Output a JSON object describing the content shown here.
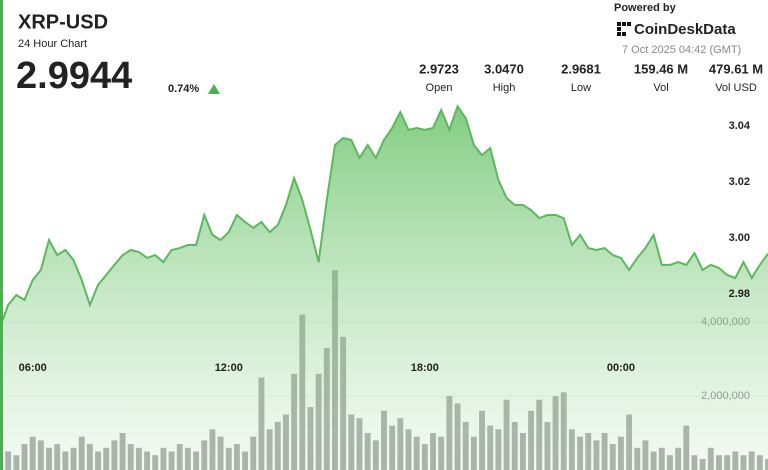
{
  "header": {
    "symbol": "XRP-USD",
    "subtitle": "24 Hour Chart",
    "price": "2.9944",
    "change": "0.74%",
    "stats": [
      {
        "value": "2.9723",
        "label": "Open"
      },
      {
        "value": "3.0470",
        "label": "High"
      },
      {
        "value": "2.9681",
        "label": "Low"
      },
      {
        "value": "159.46 M",
        "label": "Vol"
      },
      {
        "value": "479.61 M",
        "label": "Vol USD"
      }
    ],
    "powered_by": "Powered by",
    "brand": "CoinDeskData",
    "timestamp": "7 Oct 2025 04:42 (GMT)"
  },
  "chart_data": [
    {
      "type": "area",
      "color": "#5cb85c",
      "categories": [
        null,
        null,
        null,
        null,
        "06:00",
        null,
        null,
        null,
        null,
        null,
        null,
        null,
        null,
        null,
        null,
        null,
        null,
        null,
        null,
        null,
        null,
        null,
        null,
        null,
        null,
        null,
        null,
        null,
        "12:00",
        null,
        null,
        null,
        null,
        null,
        null,
        null,
        null,
        null,
        null,
        null,
        null,
        null,
        null,
        null,
        null,
        null,
        null,
        null,
        null,
        null,
        null,
        null,
        "18:00",
        null,
        null,
        null,
        null,
        null,
        null,
        null,
        null,
        null,
        null,
        null,
        null,
        null,
        null,
        null,
        null,
        null,
        null,
        null,
        null,
        null,
        null,
        null,
        "00:00",
        null,
        null,
        null,
        null,
        null,
        null,
        null,
        null,
        null,
        null,
        null,
        null,
        null,
        null,
        null,
        null,
        null,
        null
      ],
      "values": [
        2.9681,
        2.9761,
        2.9796,
        2.9779,
        2.985,
        2.9886,
        2.9993,
        2.9939,
        2.9957,
        2.9921,
        2.985,
        2.9761,
        2.9832,
        2.9868,
        2.9904,
        2.9939,
        2.9957,
        2.995,
        2.9929,
        2.9939,
        2.9914,
        2.9957,
        2.9964,
        2.9975,
        2.9975,
        3.0082,
        3.0011,
        2.9993,
        3.0021,
        3.0082,
        3.0057,
        3.0036,
        3.0057,
        3.0021,
        3.0046,
        3.0118,
        3.0214,
        3.0136,
        3.0029,
        2.9914,
        3.0136,
        3.0332,
        3.0357,
        3.035,
        3.0286,
        3.0332,
        3.0286,
        3.035,
        3.0393,
        3.045,
        3.0386,
        3.0393,
        3.0386,
        3.0393,
        3.0457,
        3.0386,
        3.047,
        3.0429,
        3.0332,
        3.0296,
        3.0321,
        3.0207,
        3.0143,
        3.0118,
        3.0118,
        3.01,
        3.0071,
        3.0082,
        3.0082,
        3.0071,
        2.9975,
        3.0011,
        2.9964,
        2.9957,
        2.9964,
        2.9939,
        2.9929,
        2.9886,
        2.9929,
        2.9964,
        3.0011,
        2.9904,
        2.9904,
        2.9914,
        2.9904,
        2.9946,
        2.9886,
        2.9904,
        2.9893,
        2.9868,
        2.9857,
        2.9914,
        2.9857,
        2.9904,
        2.9944
      ],
      "ylim": [
        2.95,
        3.07
      ],
      "yticks": [
        2.98,
        {
          "value": 3,
          "label": "3.00"
        },
        3.02,
        3.04
      ]
    },
    {
      "type": "bar",
      "color": "#5f635f",
      "values": [
        600000,
        500000,
        400000,
        700000,
        900000,
        800000,
        600000,
        700000,
        500000,
        600000,
        900000,
        700000,
        500000,
        600000,
        800000,
        1000000,
        700000,
        600000,
        500000,
        400000,
        600000,
        500000,
        700000,
        600000,
        500000,
        800000,
        1100000,
        900000,
        600000,
        700000,
        500000,
        900000,
        2500000,
        1100000,
        1300000,
        1500000,
        2600000,
        4200000,
        1700000,
        2600000,
        3300000,
        5400000,
        3600000,
        1500000,
        1400000,
        1000000,
        800000,
        1600000,
        1200000,
        1400000,
        1100000,
        900000,
        700000,
        1000000,
        900000,
        2000000,
        1800000,
        1300000,
        900000,
        1600000,
        1200000,
        1100000,
        1900000,
        1300000,
        1000000,
        1600000,
        1900000,
        1300000,
        2000000,
        2100000,
        1100000,
        900000,
        1000000,
        800000,
        1000000,
        700000,
        900000,
        1500000,
        600000,
        800000,
        500000,
        600000,
        400000,
        600000,
        1200000,
        400000,
        300000,
        600000,
        400000,
        400000,
        500000,
        400000,
        500000,
        400000,
        300000
      ],
      "ylim": [
        0,
        12000000
      ],
      "yticks": [
        {
          "value": 2000000,
          "label": "2,000,000"
        },
        {
          "value": 4000000,
          "label": "4,000,000"
        }
      ],
      "grid": true
    }
  ]
}
